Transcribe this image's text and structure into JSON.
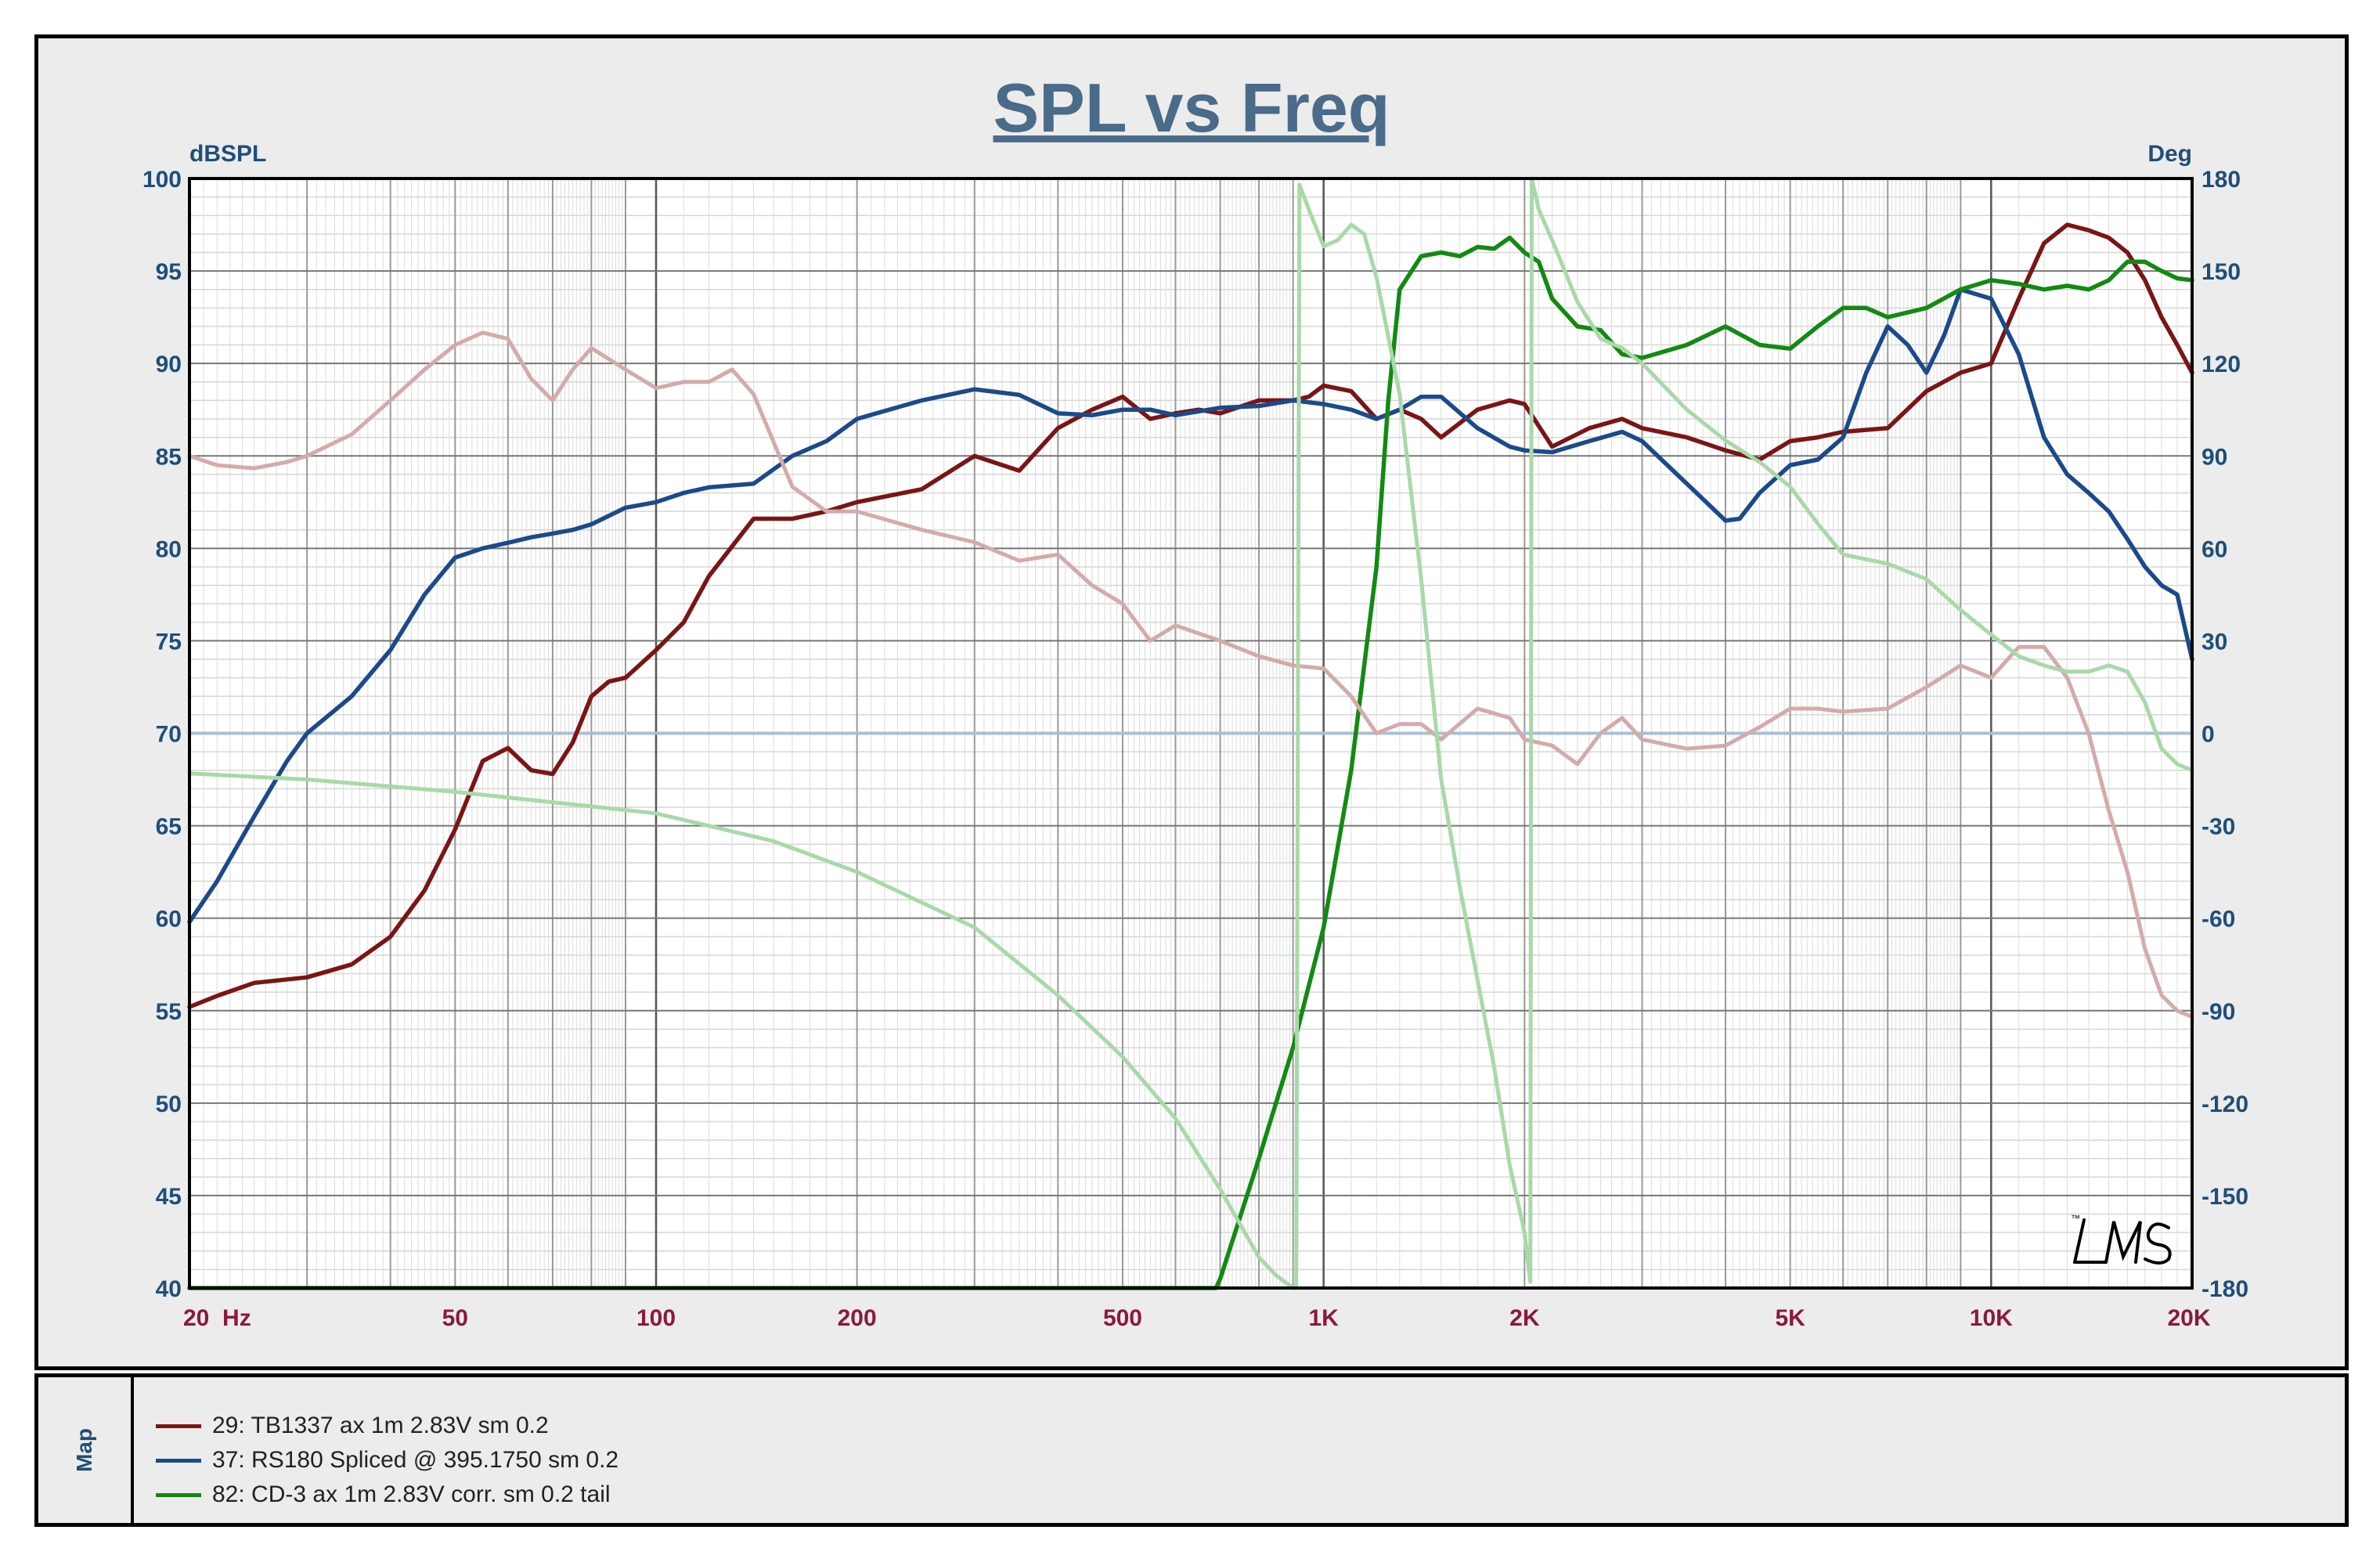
{
  "chart_data": {
    "type": "line",
    "title": "SPL vs Freq",
    "ylabel": "dBSPL",
    "y2label": "Deg",
    "xscale": "log",
    "xlim": [
      20,
      20000
    ],
    "ylim": [
      40,
      100
    ],
    "y2lim": [
      -180,
      180
    ],
    "grid": true,
    "x_ticks": [
      {
        "v": 20,
        "label": "20  Hz"
      },
      {
        "v": 50,
        "label": "50"
      },
      {
        "v": 100,
        "label": "100"
      },
      {
        "v": 200,
        "label": "200"
      },
      {
        "v": 500,
        "label": "500"
      },
      {
        "v": 1000,
        "label": "1K"
      },
      {
        "v": 2000,
        "label": "2K"
      },
      {
        "v": 5000,
        "label": "5K"
      },
      {
        "v": 10000,
        "label": "10K"
      },
      {
        "v": 20000,
        "label": "20K"
      }
    ],
    "y_ticks": [
      "100",
      "95",
      "90",
      "85",
      "80",
      "75",
      "70",
      "65",
      "60",
      "55",
      "50",
      "45",
      "40"
    ],
    "y2_ticks": [
      "180",
      "150",
      "120",
      "90",
      "60",
      "30",
      "0",
      "-30",
      "-60",
      "-90",
      "-120",
      "-150",
      "-180"
    ],
    "series": [
      {
        "name": "29: TB1337 ax 1m 2.83V sm 0.2",
        "color": "#7b1515",
        "axis": "spl",
        "x": [
          20,
          22,
          25,
          30,
          35,
          40,
          45,
          50,
          55,
          60,
          65,
          70,
          75,
          80,
          85,
          90,
          100,
          110,
          120,
          140,
          160,
          180,
          200,
          250,
          300,
          350,
          400,
          450,
          500,
          550,
          600,
          650,
          700,
          800,
          900,
          950,
          1000,
          1100,
          1200,
          1300,
          1400,
          1500,
          1700,
          1900,
          2000,
          2200,
          2500,
          2800,
          3000,
          3500,
          4000,
          4500,
          5000,
          5500,
          6000,
          7000,
          8000,
          9000,
          10000,
          11000,
          12000,
          13000,
          14000,
          15000,
          16000,
          17000,
          18000,
          19000,
          20000
        ],
        "y": [
          55.2,
          55.8,
          56.5,
          56.8,
          57.5,
          59.0,
          61.5,
          64.8,
          68.5,
          69.2,
          68.0,
          67.8,
          69.5,
          72.0,
          72.8,
          73.0,
          74.5,
          76.0,
          78.5,
          81.6,
          81.6,
          82.0,
          82.5,
          83.2,
          85.0,
          84.2,
          86.5,
          87.5,
          88.2,
          87.0,
          87.3,
          87.5,
          87.3,
          88.0,
          88.0,
          88.2,
          88.8,
          88.5,
          87.0,
          87.5,
          87.0,
          86.0,
          87.5,
          88.0,
          87.8,
          85.5,
          86.5,
          87.0,
          86.5,
          86.0,
          85.3,
          84.8,
          85.8,
          86.0,
          86.3,
          86.5,
          88.5,
          89.5,
          90.0,
          93.5,
          96.5,
          97.5,
          97.2,
          96.8,
          96.0,
          94.5,
          92.5,
          91.0,
          89.5
        ]
      },
      {
        "name": "37: RS180 Spliced @ 395.1750 sm 0.2",
        "color": "#1a4a8a",
        "axis": "spl",
        "x": [
          20,
          22,
          25,
          28,
          30,
          35,
          40,
          45,
          50,
          55,
          60,
          65,
          70,
          75,
          80,
          90,
          100,
          110,
          120,
          140,
          160,
          180,
          200,
          250,
          300,
          350,
          400,
          450,
          500,
          550,
          600,
          700,
          800,
          900,
          1000,
          1100,
          1200,
          1300,
          1400,
          1500,
          1700,
          1900,
          2000,
          2200,
          2500,
          2800,
          3000,
          3500,
          4000,
          4200,
          4500,
          5000,
          5500,
          6000,
          6500,
          7000,
          7500,
          8000,
          8500,
          9000,
          10000,
          11000,
          12000,
          13000,
          14000,
          15000,
          16000,
          17000,
          18000,
          19000,
          20000
        ],
        "y": [
          59.8,
          62.0,
          65.5,
          68.5,
          70.0,
          72.0,
          74.5,
          77.5,
          79.5,
          80.0,
          80.3,
          80.6,
          80.8,
          81.0,
          81.3,
          82.2,
          82.5,
          83.0,
          83.3,
          83.5,
          85.0,
          85.8,
          87.0,
          88.0,
          88.6,
          88.3,
          87.3,
          87.2,
          87.5,
          87.5,
          87.2,
          87.6,
          87.7,
          88.0,
          87.8,
          87.5,
          87.0,
          87.5,
          88.2,
          88.2,
          86.5,
          85.5,
          85.3,
          85.2,
          85.8,
          86.3,
          85.8,
          83.5,
          81.5,
          81.6,
          83.0,
          84.5,
          84.8,
          86.0,
          89.5,
          92.0,
          91.0,
          89.5,
          91.5,
          94.0,
          93.5,
          90.5,
          86.0,
          84.0,
          83.0,
          82.0,
          80.5,
          79.0,
          78.0,
          77.5,
          74.0
        ]
      },
      {
        "name": "82: CD-3 ax 1m 2.83V corr. sm 0.2 tail",
        "color": "#128a12",
        "axis": "spl",
        "x": [
          20,
          100,
          500,
          690,
          700,
          800,
          900,
          1000,
          1100,
          1200,
          1250,
          1300,
          1400,
          1500,
          1600,
          1700,
          1800,
          1900,
          2000,
          2100,
          2200,
          2400,
          2600,
          2800,
          3000,
          3500,
          4000,
          4500,
          5000,
          5500,
          6000,
          6500,
          7000,
          8000,
          9000,
          10000,
          11000,
          12000,
          13000,
          14000,
          15000,
          16000,
          17000,
          18000,
          19000,
          20000
        ],
        "y": [
          40,
          40,
          40,
          40,
          40.5,
          47.0,
          53.0,
          59.5,
          68.0,
          79.0,
          88.0,
          94.0,
          95.8,
          96.0,
          95.8,
          96.3,
          96.2,
          96.8,
          96.0,
          95.5,
          93.5,
          92.0,
          91.8,
          90.5,
          90.3,
          91.0,
          92.0,
          91.0,
          90.8,
          92.0,
          93.0,
          93.0,
          92.5,
          93.0,
          94.0,
          94.5,
          94.3,
          94.0,
          94.2,
          94.0,
          94.5,
          95.5,
          95.5,
          95.0,
          94.6,
          94.5
        ]
      },
      {
        "name": "",
        "color": "#d4aaaa",
        "axis": "phase",
        "x": [
          20,
          22,
          25,
          28,
          30,
          35,
          40,
          45,
          50,
          55,
          60,
          65,
          70,
          75,
          80,
          90,
          100,
          110,
          120,
          130,
          140,
          160,
          180,
          200,
          250,
          300,
          350,
          400,
          450,
          500,
          550,
          600,
          700,
          800,
          900,
          1000,
          1100,
          1200,
          1300,
          1400,
          1500,
          1700,
          1900,
          2000,
          2200,
          2400,
          2600,
          2800,
          3000,
          3500,
          4000,
          4500,
          5000,
          5500,
          6000,
          7000,
          8000,
          9000,
          10000,
          11000,
          12000,
          13000,
          14000,
          15000,
          16000,
          17000,
          18000,
          19000,
          20000
        ],
        "y": [
          90,
          87,
          86,
          88,
          90,
          97,
          108,
          118,
          126,
          130,
          128,
          115,
          108,
          118,
          125,
          118,
          112,
          114,
          114,
          118,
          110,
          80,
          72,
          72,
          66,
          62,
          56,
          58,
          48,
          42,
          30,
          35,
          30,
          25,
          22,
          21,
          12,
          0,
          3,
          3,
          -2,
          8,
          5,
          -2,
          -4,
          -10,
          0,
          5,
          -2,
          -5,
          -4,
          2,
          8,
          8,
          7,
          8,
          15,
          22,
          18,
          28,
          28,
          18,
          0,
          -25,
          -45,
          -70,
          -85,
          -90,
          -92
        ]
      },
      {
        "name": "",
        "color": "#a8d9a8",
        "axis": "phase",
        "x": [
          20,
          30,
          50,
          100,
          150,
          200,
          300,
          400,
          500,
          600,
          700,
          800,
          850,
          900,
          910,
          920,
          950,
          1000,
          1050,
          1100,
          1150,
          1200,
          1300,
          1400,
          1500,
          1600,
          1700,
          1800,
          1900,
          2000,
          2040,
          2050,
          2100,
          2200,
          2400,
          2600,
          2800,
          3000,
          3500,
          4000,
          4500,
          5000,
          5500,
          6000,
          7000,
          8000,
          9000,
          10000,
          11000,
          12000,
          13000,
          14000,
          15000,
          16000,
          17000,
          18000,
          19000,
          20000
        ],
        "y": [
          -13,
          -15,
          -19,
          -26,
          -35,
          -45,
          -63,
          -85,
          -105,
          -125,
          -148,
          -170,
          -176,
          -180,
          -180,
          178,
          170,
          158,
          160,
          165,
          162,
          148,
          110,
          50,
          -15,
          -50,
          -80,
          -108,
          -140,
          -162,
          -178,
          180,
          170,
          160,
          140,
          128,
          125,
          120,
          105,
          95,
          88,
          80,
          68,
          58,
          55,
          50,
          40,
          32,
          25,
          22,
          20,
          20,
          22,
          20,
          10,
          -5,
          -10,
          -12
        ]
      }
    ]
  },
  "legend_tab": "Map",
  "legend": [
    {
      "label": "29: TB1337 ax 1m 2.83V sm 0.2",
      "color": "#7b1515"
    },
    {
      "label": "37: RS180 Spliced @ 395.1750 sm 0.2",
      "color": "#1a4a8a"
    },
    {
      "label": "82: CD-3 ax 1m 2.83V corr. sm 0.2 tail",
      "color": "#128a12"
    }
  ],
  "watermark": "LMS"
}
